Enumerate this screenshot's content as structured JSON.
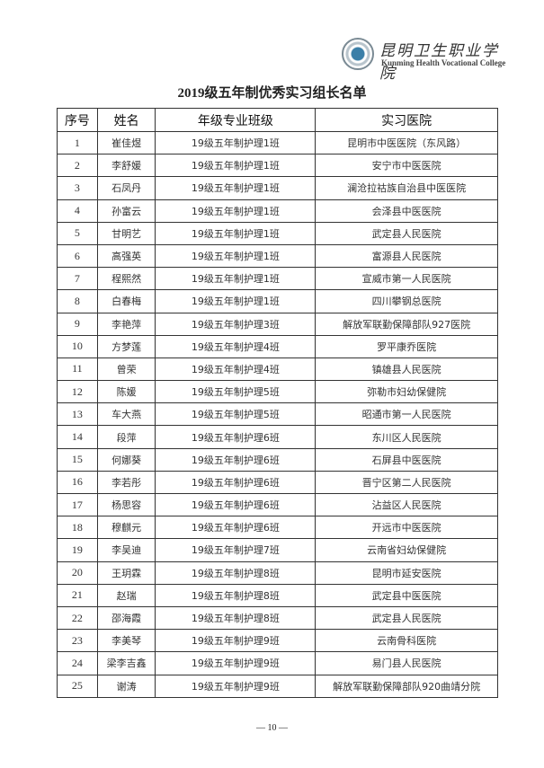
{
  "logo": {
    "cn": "昆明卫生职业学院",
    "en": "Kunming Health Vocational College"
  },
  "title": "2019级五年制优秀实习组长名单",
  "table": {
    "headers": [
      "序号",
      "姓名",
      "年级专业班级",
      "实习医院"
    ],
    "rows": [
      [
        "1",
        "崔佳煜",
        "19级五年制护理1班",
        "昆明市中医医院（东风路）"
      ],
      [
        "2",
        "李舒媛",
        "19级五年制护理1班",
        "安宁市中医医院"
      ],
      [
        "3",
        "石凤丹",
        "19级五年制护理1班",
        "澜沧拉祜族自治县中医医院"
      ],
      [
        "4",
        "孙富云",
        "19级五年制护理1班",
        "会泽县中医医院"
      ],
      [
        "5",
        "甘明艺",
        "19级五年制护理1班",
        "武定县人民医院"
      ],
      [
        "6",
        "高强英",
        "19级五年制护理1班",
        "富源县人民医院"
      ],
      [
        "7",
        "程熙然",
        "19级五年制护理1班",
        "宣威市第一人民医院"
      ],
      [
        "8",
        "白春梅",
        "19级五年制护理1班",
        "四川攀钢总医院"
      ],
      [
        "9",
        "李艳萍",
        "19级五年制护理3班",
        "解放军联勤保障部队927医院"
      ],
      [
        "10",
        "方梦莲",
        "19级五年制护理4班",
        "罗平康乔医院"
      ],
      [
        "11",
        "曾荣",
        "19级五年制护理4班",
        "镇雄县人民医院"
      ],
      [
        "12",
        "陈媛",
        "19级五年制护理5班",
        "弥勒市妇幼保健院"
      ],
      [
        "13",
        "车大燕",
        "19级五年制护理5班",
        "昭通市第一人民医院"
      ],
      [
        "14",
        "段萍",
        "19级五年制护理6班",
        "东川区人民医院"
      ],
      [
        "15",
        "何娜葵",
        "19级五年制护理6班",
        "石屏县中医医院"
      ],
      [
        "16",
        "李若彤",
        "19级五年制护理6班",
        "晋宁区第二人民医院"
      ],
      [
        "17",
        "杨思容",
        "19级五年制护理6班",
        "沾益区人民医院"
      ],
      [
        "18",
        "穆麒元",
        "19级五年制护理6班",
        "开远市中医医院"
      ],
      [
        "19",
        "李吴迪",
        "19级五年制护理7班",
        "云南省妇幼保健院"
      ],
      [
        "20",
        "王玥霖",
        "19级五年制护理8班",
        "昆明市延安医院"
      ],
      [
        "21",
        "赵瑞",
        "19级五年制护理8班",
        "武定县中医医院"
      ],
      [
        "22",
        "邵海霞",
        "19级五年制护理8班",
        "武定县人民医院"
      ],
      [
        "23",
        "李美琴",
        "19级五年制护理9班",
        "云南骨科医院"
      ],
      [
        "24",
        "梁李吉鑫",
        "19级五年制护理9班",
        "易门县人民医院"
      ],
      [
        "25",
        "谢涛",
        "19级五年制护理9班",
        "解放军联勤保障部队920曲靖分院"
      ]
    ]
  },
  "page_number": "— 10 —"
}
